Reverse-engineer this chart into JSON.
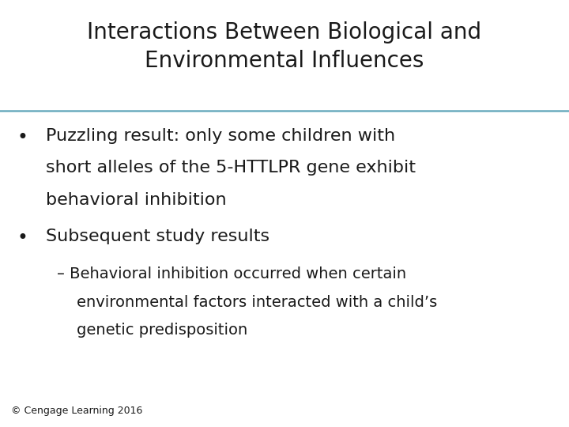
{
  "title_line1": "Interactions Between Biological and",
  "title_line2": "Environmental Influences",
  "title_fontsize": 20,
  "title_color": "#1a1a1a",
  "background_color": "#ffffff",
  "divider_color": "#6aacbe",
  "bullet1_line1": "Puzzling result: only some children with",
  "bullet1_line2": "short alleles of the 5-HTTLPR gene exhibit",
  "bullet1_line3": "behavioral inhibition",
  "bullet2": "Subsequent study results",
  "sub_bullet_line1": "– Behavioral inhibition occurred when certain",
  "sub_bullet_line2": "environmental factors interacted with a child’s",
  "sub_bullet_line3": "genetic predisposition",
  "bullet_fontsize": 16,
  "sub_bullet_fontsize": 14,
  "footer": "© Cengage Learning 2016",
  "footer_fontsize": 9,
  "text_color": "#1a1a1a",
  "fig_width": 7.2,
  "fig_height": 5.4,
  "dpi": 100
}
